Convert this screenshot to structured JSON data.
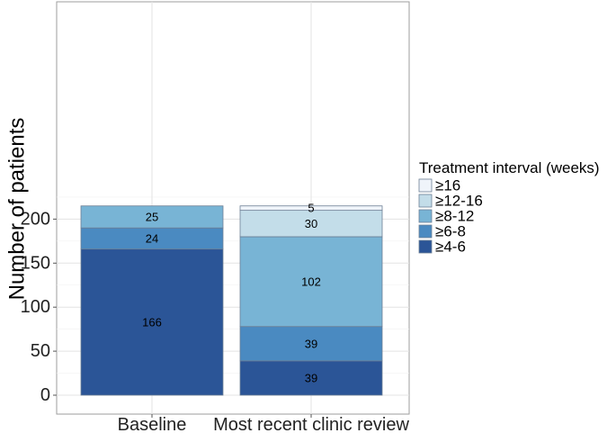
{
  "chart_data": {
    "type": "bar",
    "stacked": true,
    "categories": [
      "Baseline",
      "Most recent clinic review"
    ],
    "ylabel": "Number of patients",
    "xlabel": "",
    "ylim": [
      0,
      220
    ],
    "yticks": [
      0,
      50,
      100,
      150,
      200
    ],
    "grid": true,
    "legend": {
      "title": "Treatment interval (weeks)",
      "position": "right"
    },
    "series": [
      {
        "name": "≥4-6",
        "color": "#2B5597",
        "values": [
          166,
          39
        ]
      },
      {
        "name": "≥6-8",
        "color": "#4A8AC1",
        "values": [
          24,
          39
        ]
      },
      {
        "name": "≥8-12",
        "color": "#78B4D5",
        "values": [
          25,
          102
        ]
      },
      {
        "name": "≥12-16",
        "color": "#C3DDE9",
        "values": [
          0,
          30
        ]
      },
      {
        "name": "≥16",
        "color": "#EFF4FA",
        "values": [
          0,
          5
        ]
      }
    ]
  }
}
